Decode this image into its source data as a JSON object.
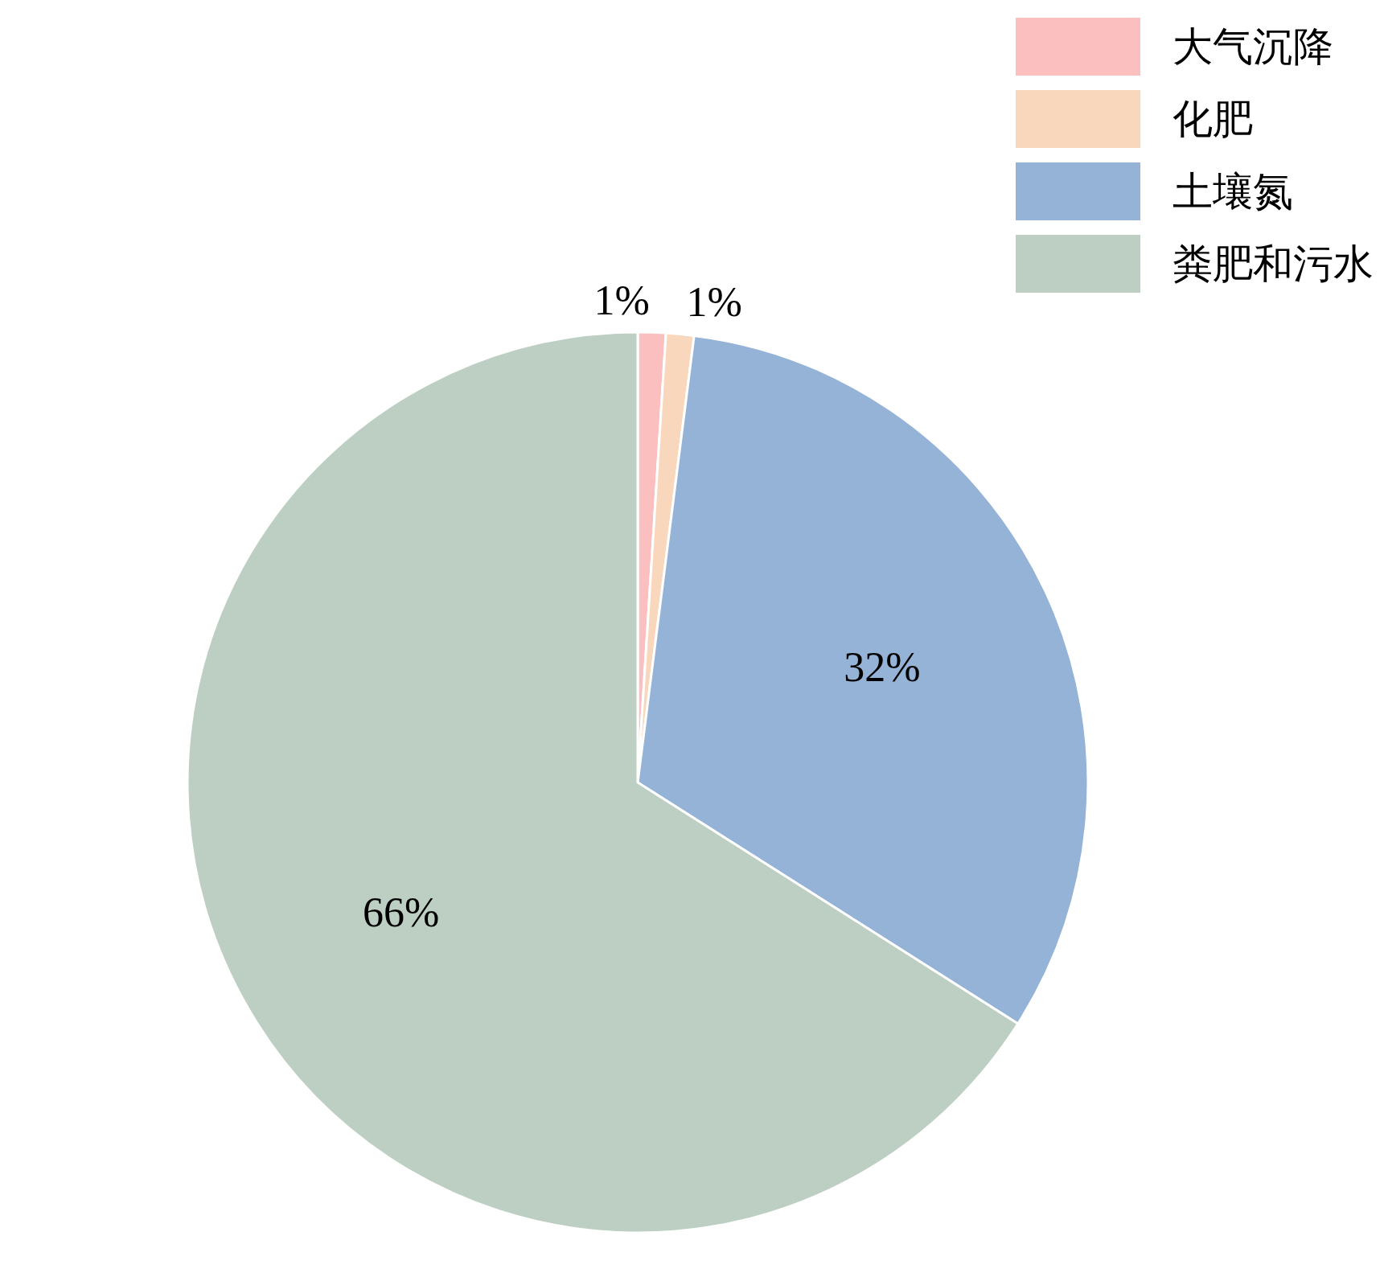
{
  "chart_data": {
    "type": "pie",
    "categories": [
      "大气沉降",
      "化肥",
      "土壤氮",
      "粪肥和污水"
    ],
    "values": [
      1,
      1,
      32,
      66
    ],
    "colors": [
      "#fbbfbf",
      "#f9d7bc",
      "#95b3d7",
      "#bccfc2"
    ],
    "value_labels": [
      "1%",
      "1%",
      "32%",
      "66%"
    ],
    "legend": "top right"
  }
}
